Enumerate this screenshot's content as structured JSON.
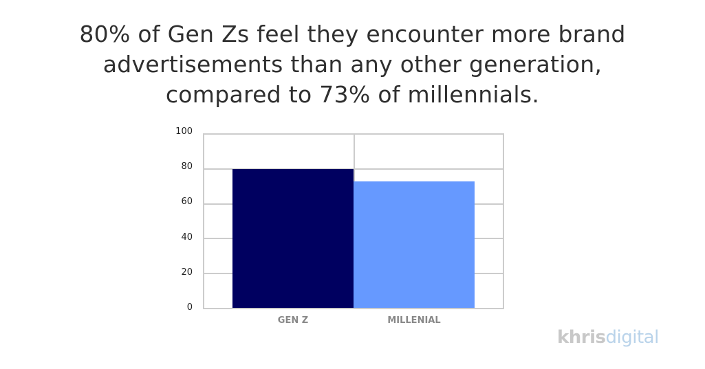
{
  "title_lines": [
    "80% of Gen Zs feel they encounter more brand",
    "advertisements than any other generation,",
    "compared to 73% of millennials."
  ],
  "logo": {
    "part1": "khris",
    "part2": "digital"
  },
  "chart_data": {
    "type": "bar",
    "title": "80% of Gen Zs feel they encounter more brand advertisements than any other generation, compared to 73% of millennials.",
    "categories": [
      "GEN Z",
      "MILLENIAL"
    ],
    "values": [
      80,
      73
    ],
    "colors": [
      "#000060",
      "#6699ff"
    ],
    "xlabel": "",
    "ylabel": "",
    "ylim": [
      0,
      100
    ],
    "yticks": [
      0,
      20,
      40,
      60,
      80,
      100
    ],
    "grid": true,
    "legend": "none"
  }
}
